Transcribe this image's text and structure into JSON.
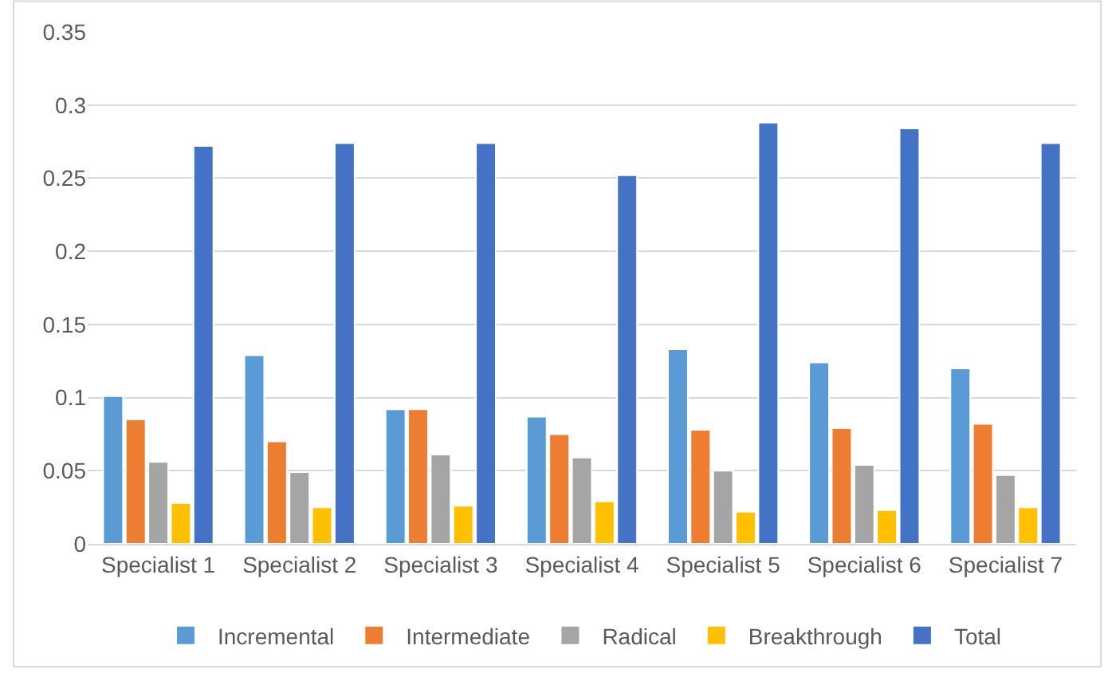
{
  "chart_data": {
    "type": "bar",
    "categories": [
      "Specialist 1",
      "Specialist 2",
      "Specialist 3",
      "Specialist 4",
      "Specialist 5",
      "Specialist 6",
      "Specialist 7"
    ],
    "series": [
      {
        "name": "Incremental",
        "color": "#5b9bd5",
        "values": [
          0.101,
          0.129,
          0.092,
          0.087,
          0.133,
          0.124,
          0.12
        ]
      },
      {
        "name": "Intermediate",
        "color": "#ed7d31",
        "values": [
          0.085,
          0.07,
          0.092,
          0.075,
          0.078,
          0.079,
          0.082
        ]
      },
      {
        "name": "Radical",
        "color": "#a5a5a5",
        "values": [
          0.056,
          0.049,
          0.061,
          0.059,
          0.05,
          0.054,
          0.047
        ]
      },
      {
        "name": "Breakthrough",
        "color": "#ffc000",
        "values": [
          0.028,
          0.025,
          0.026,
          0.029,
          0.022,
          0.023,
          0.025
        ]
      },
      {
        "name": "Total",
        "color": "#4472c4",
        "values": [
          0.272,
          0.274,
          0.274,
          0.252,
          0.288,
          0.284,
          0.274
        ]
      }
    ],
    "ylim": [
      0,
      0.35
    ],
    "yticks": [
      0,
      0.05,
      0.1,
      0.15,
      0.2,
      0.25,
      0.3,
      0.35
    ],
    "grid": "y",
    "legend": "bottom"
  }
}
